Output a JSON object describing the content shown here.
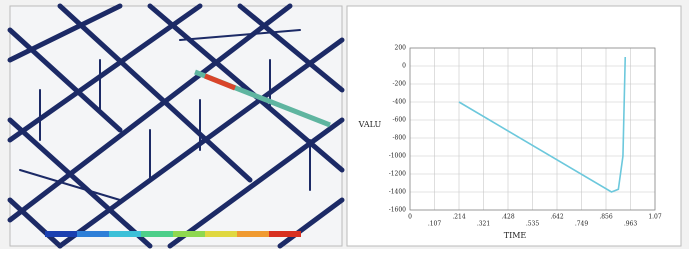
{
  "chart_data": {
    "type": "line",
    "xlabel": "TIME",
    "ylabel": "VALU",
    "x": [
      0.214,
      0.88,
      0.91,
      0.93,
      0.94
    ],
    "values": [
      -400,
      -1400,
      -1370,
      -1000,
      100
    ],
    "color": "#6cc8dc",
    "xlim": [
      0,
      1.07
    ],
    "xticks": [
      0,
      {
        "value": 0.107,
        "label": ".107"
      },
      {
        "value": 0.214,
        "label": ".214"
      },
      {
        "value": 0.321,
        "label": ".321"
      },
      {
        "value": 0.428,
        "label": ".428"
      },
      {
        "value": 0.535,
        "label": ".535"
      },
      {
        "value": 0.642,
        "label": ".642"
      },
      {
        "value": 0.749,
        "label": ".749"
      },
      {
        "value": 0.856,
        "label": ".856"
      },
      {
        "value": 0.963,
        "label": ".963"
      },
      1.07
    ],
    "ylim": [
      -1600,
      200
    ],
    "yticks": [
      -1600,
      -1400,
      -1200,
      -1000,
      -800,
      -600,
      -400,
      -200,
      0,
      200
    ],
    "grid": true
  }
}
